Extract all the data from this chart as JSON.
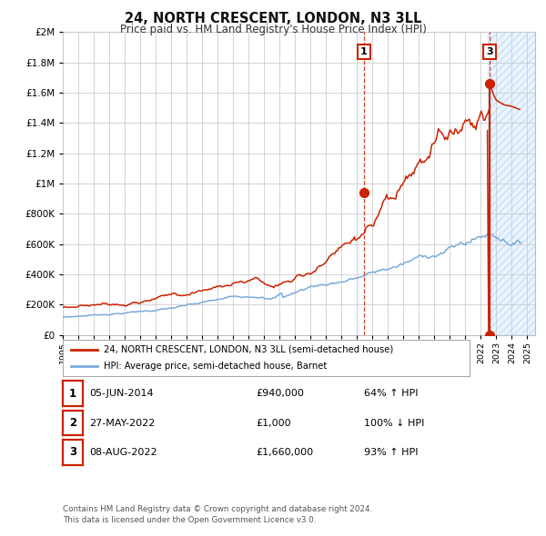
{
  "title": "24, NORTH CRESCENT, LONDON, N3 3LL",
  "subtitle": "Price paid vs. HM Land Registry's House Price Index (HPI)",
  "ylim": [
    0,
    2000000
  ],
  "xlim_start": 1995.0,
  "xlim_end": 2025.5,
  "hpi_color": "#7aabdb",
  "price_color": "#cc2200",
  "legend_label_price": "24, NORTH CRESCENT, LONDON, N3 3LL (semi-detached house)",
  "legend_label_hpi": "HPI: Average price, semi-detached house, Barnet",
  "ann1_x": 2014.43,
  "ann1_y": 940000,
  "ann3_x": 2022.58,
  "ann3_y": 1660000,
  "hatch_start": 2022.42,
  "table_rows": [
    [
      "1",
      "05-JUN-2014",
      "£940,000",
      "64% ↑ HPI"
    ],
    [
      "2",
      "27-MAY-2022",
      "£1,000",
      "100% ↓ HPI"
    ],
    [
      "3",
      "08-AUG-2022",
      "£1,660,000",
      "93% ↑ HPI"
    ]
  ],
  "footnote": "Contains HM Land Registry data © Crown copyright and database right 2024.\nThis data is licensed under the Open Government Licence v3.0.",
  "background_color": "#ffffff",
  "grid_color": "#cccccc",
  "hatch_color": "#ddeeff"
}
